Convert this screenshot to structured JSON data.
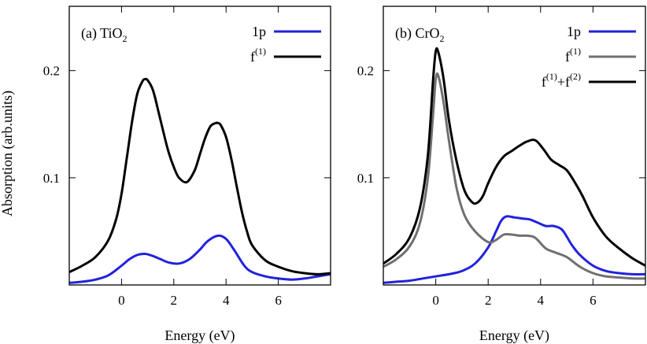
{
  "ylabel": "Absorption (arb.units)",
  "colors": {
    "1p": "#2222dd",
    "f1": "#000000",
    "f1_gray": "#707070",
    "f12": "#000000",
    "frame": "#000000"
  },
  "chart_data": [
    {
      "type": "line",
      "panel": "(a) TiO",
      "panel_sub": "2",
      "xlabel": "Energy (eV)",
      "ylabel": "Absorption (arb.units)",
      "xlim": [
        -2,
        8
      ],
      "ylim": [
        0,
        0.26
      ],
      "xticks": [
        0,
        2,
        4,
        6
      ],
      "xtick_labels": [
        "0",
        "2",
        "4",
        "6"
      ],
      "yticks": [
        0.1,
        0.2
      ],
      "ytick_labels": [
        "0.1",
        "0.2"
      ],
      "legend_position": "top-right",
      "series": [
        {
          "name": "1p",
          "legend_base": "1p",
          "color": "#2222dd",
          "x": [
            -2,
            -1.5,
            -1,
            -0.5,
            0,
            0.3,
            0.6,
            0.9,
            1.2,
            1.5,
            1.8,
            2.2,
            2.6,
            3.0,
            3.3,
            3.7,
            4.0,
            4.3,
            4.7,
            5.0,
            5.5,
            6.0,
            6.5,
            7.0,
            7.5,
            8.0
          ],
          "y": [
            0.002,
            0.003,
            0.005,
            0.009,
            0.018,
            0.024,
            0.028,
            0.029,
            0.027,
            0.024,
            0.021,
            0.02,
            0.024,
            0.033,
            0.041,
            0.046,
            0.043,
            0.033,
            0.018,
            0.012,
            0.008,
            0.006,
            0.005,
            0.006,
            0.008,
            0.01
          ]
        },
        {
          "name": "f(1)",
          "legend_base": "f",
          "legend_sup": "(1)",
          "color": "#000000",
          "x": [
            -2,
            -1.5,
            -1,
            -0.5,
            -0.2,
            0,
            0.2,
            0.4,
            0.6,
            0.8,
            0.9,
            1.0,
            1.2,
            1.4,
            1.6,
            1.8,
            2.0,
            2.2,
            2.5,
            2.8,
            3.0,
            3.2,
            3.4,
            3.6,
            3.7,
            3.8,
            4.0,
            4.2,
            4.4,
            4.6,
            4.8,
            5.0,
            5.5,
            6.0,
            6.5,
            7.0,
            7.5,
            8.0
          ],
          "y": [
            0.012,
            0.018,
            0.026,
            0.042,
            0.062,
            0.085,
            0.118,
            0.152,
            0.178,
            0.19,
            0.192,
            0.191,
            0.182,
            0.163,
            0.143,
            0.124,
            0.11,
            0.1,
            0.096,
            0.107,
            0.122,
            0.137,
            0.148,
            0.151,
            0.151,
            0.149,
            0.138,
            0.118,
            0.093,
            0.069,
            0.05,
            0.037,
            0.023,
            0.017,
            0.013,
            0.011,
            0.01,
            0.011
          ]
        }
      ]
    },
    {
      "type": "line",
      "panel": "(b) CrO",
      "panel_sub": "2",
      "xlabel": "Energy (eV)",
      "ylabel": "Absorption (arb.units)",
      "xlim": [
        -2,
        8
      ],
      "ylim": [
        0,
        0.26
      ],
      "xticks": [
        0,
        2,
        4,
        6
      ],
      "xtick_labels": [
        "0",
        "2",
        "4",
        "6"
      ],
      "yticks": [
        0.1,
        0.2
      ],
      "ytick_labels": [
        "0.1",
        "0.2"
      ],
      "legend_position": "top-right",
      "series": [
        {
          "name": "1p",
          "legend_base": "1p",
          "color": "#2222dd",
          "x": [
            -2,
            -1.5,
            -1,
            -0.5,
            0,
            0.5,
            1.0,
            1.5,
            2.0,
            2.3,
            2.5,
            2.7,
            3.0,
            3.3,
            3.6,
            3.9,
            4.2,
            4.5,
            4.8,
            5.0,
            5.2,
            5.5,
            6.0,
            6.5,
            7.0,
            7.5,
            8.0
          ],
          "y": [
            0.002,
            0.003,
            0.004,
            0.006,
            0.008,
            0.01,
            0.013,
            0.02,
            0.035,
            0.05,
            0.06,
            0.064,
            0.063,
            0.062,
            0.061,
            0.058,
            0.055,
            0.055,
            0.052,
            0.045,
            0.037,
            0.028,
            0.018,
            0.013,
            0.011,
            0.01,
            0.01
          ]
        },
        {
          "name": "f(1)",
          "legend_base": "f",
          "legend_sup": "(1)",
          "color": "#707070",
          "x": [
            -2,
            -1.5,
            -1,
            -0.6,
            -0.3,
            -0.1,
            0,
            0.1,
            0.3,
            0.5,
            0.8,
            1.1,
            1.5,
            2.0,
            2.3,
            2.6,
            2.9,
            3.2,
            3.5,
            3.8,
            4.2,
            4.6,
            5.0,
            5.5,
            6.0,
            6.5,
            7.0,
            7.5,
            8.0
          ],
          "y": [
            0.017,
            0.024,
            0.036,
            0.058,
            0.1,
            0.16,
            0.192,
            0.195,
            0.17,
            0.135,
            0.09,
            0.065,
            0.05,
            0.04,
            0.042,
            0.047,
            0.047,
            0.046,
            0.046,
            0.044,
            0.034,
            0.03,
            0.026,
            0.017,
            0.011,
            0.008,
            0.007,
            0.006,
            0.006
          ]
        },
        {
          "name": "f(1)+f(2)",
          "legend_base": "f",
          "legend_sup": "(1)",
          "legend_mid": "+f",
          "legend_sup2": "(2)",
          "color": "#000000",
          "x": [
            -2,
            -1.5,
            -1,
            -0.6,
            -0.3,
            -0.1,
            0,
            0.1,
            0.3,
            0.5,
            0.8,
            1.1,
            1.4,
            1.6,
            1.8,
            2.0,
            2.3,
            2.6,
            2.9,
            3.2,
            3.5,
            3.8,
            4.1,
            4.4,
            4.7,
            5.0,
            5.3,
            5.6,
            6.0,
            6.5,
            7.0,
            7.5,
            8.0
          ],
          "y": [
            0.02,
            0.029,
            0.044,
            0.072,
            0.121,
            0.192,
            0.218,
            0.217,
            0.192,
            0.154,
            0.115,
            0.088,
            0.077,
            0.077,
            0.083,
            0.095,
            0.11,
            0.12,
            0.125,
            0.13,
            0.134,
            0.135,
            0.127,
            0.117,
            0.112,
            0.107,
            0.096,
            0.083,
            0.063,
            0.045,
            0.034,
            0.025,
            0.018
          ]
        }
      ]
    }
  ]
}
